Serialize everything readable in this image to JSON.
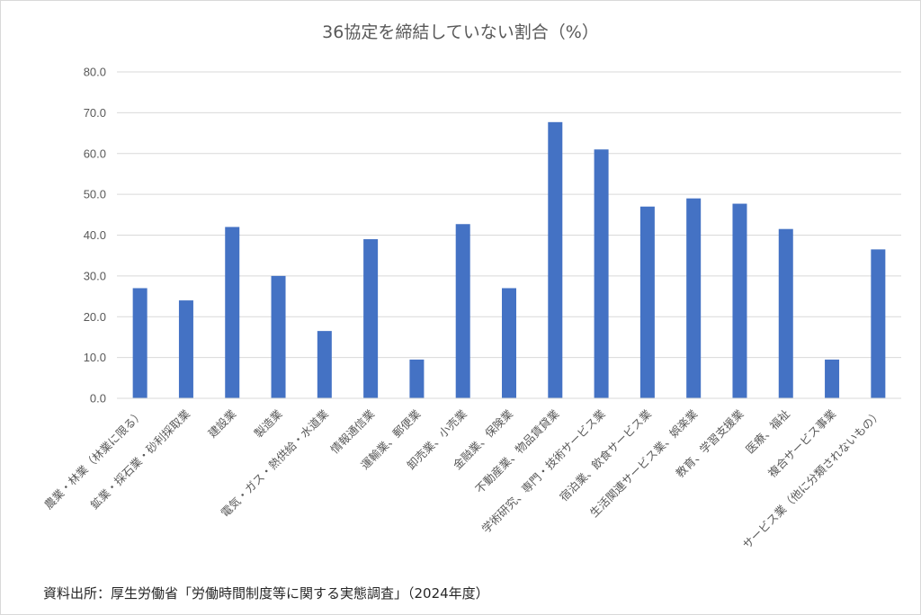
{
  "chart_data": {
    "type": "bar",
    "title": "36協定を締結していない割合（%）",
    "xlabel": "",
    "ylabel": "",
    "ylim": [
      0,
      80
    ],
    "y_ticks": [
      "0.0",
      "10.0",
      "20.0",
      "30.0",
      "40.0",
      "50.0",
      "60.0",
      "70.0",
      "80.0"
    ],
    "grid": true,
    "legend": "none",
    "bar_color": "#4472c4",
    "categories": [
      "農業・林業（林業に限る）",
      "鉱業・採石業・砂利採取業",
      "建設業",
      "製造業",
      "電気・ガス・熱供給・水道業",
      "情報通信業",
      "運輸業、郵便業",
      "卸売業、小売業",
      "金融業、保険業",
      "不動産業、物品賃貸業",
      "学術研究、専門・技術サービス業",
      "宿泊業、飲食サービス業",
      "生活関連サービス業、娯楽業",
      "教育、学習支援業",
      "医療、福祉",
      "複合サービス事業",
      "サービス業（他に分類されないもの）"
    ],
    "values": [
      27.0,
      24.0,
      42.0,
      30.0,
      16.5,
      39.0,
      9.5,
      42.7,
      27.0,
      67.7,
      61.0,
      47.0,
      49.0,
      47.7,
      41.5,
      9.5,
      36.5
    ]
  },
  "source_note": "資料出所：厚生労働省「労働時間制度等に関する実態調査」（2024年度）"
}
